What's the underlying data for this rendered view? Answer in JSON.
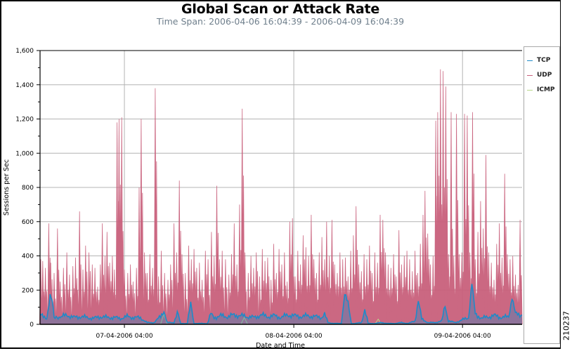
{
  "chart_data": {
    "type": "line",
    "title": "Global Scan or Attack Rate",
    "subtitle": "Time Span: 2006-04-06 16:04:39 - 2006-04-09 16:04:39",
    "xlabel": "Date and Time",
    "ylabel": "Sessions per Sec",
    "ylim": [
      0,
      1600
    ],
    "y_ticks": [
      "0",
      "200",
      "400",
      "600",
      "800",
      "1,000",
      "1,200",
      "1,400",
      "1,600"
    ],
    "y_tick_values": [
      0,
      200,
      400,
      600,
      800,
      1000,
      1200,
      1400,
      1600
    ],
    "x_range_hours": [
      0,
      72
    ],
    "x_ticks": [
      {
        "label": "07-04-2006 04:00",
        "hour": 12.6
      },
      {
        "label": "08-04-2006 04:00",
        "hour": 37.9
      },
      {
        "label": "09-04-2006 04:00",
        "hour": 63.1
      }
    ],
    "grid": true,
    "legend_position": "right",
    "legend": [
      "TCP",
      "UDP",
      "ICMP"
    ],
    "colors": {
      "TCP": "#1f8ac8",
      "UDP": "#c9607c",
      "ICMP": "#b8d88a"
    },
    "series": [
      {
        "name": "UDP",
        "note": "spike peaks (hour, sessions/sec)",
        "peaks": [
          [
            0.1,
            380
          ],
          [
            0.4,
            370
          ],
          [
            0.8,
            330
          ],
          [
            1.3,
            590
          ],
          [
            1.6,
            360
          ],
          [
            2.1,
            300
          ],
          [
            2.6,
            560
          ],
          [
            3.0,
            250
          ],
          [
            3.5,
            330
          ],
          [
            4.0,
            420
          ],
          [
            4.4,
            290
          ],
          [
            4.9,
            340
          ],
          [
            5.3,
            390
          ],
          [
            5.6,
            200
          ],
          [
            5.9,
            660
          ],
          [
            6.4,
            320
          ],
          [
            6.8,
            460
          ],
          [
            7.3,
            420
          ],
          [
            7.8,
            350
          ],
          [
            8.2,
            330
          ],
          [
            8.6,
            220
          ],
          [
            9.0,
            350
          ],
          [
            9.3,
            590
          ],
          [
            9.7,
            400
          ],
          [
            10.0,
            540
          ],
          [
            10.4,
            360
          ],
          [
            10.8,
            400
          ],
          [
            11.1,
            320
          ],
          [
            11.5,
            1180
          ],
          [
            11.8,
            1200
          ],
          [
            12.2,
            1210
          ],
          [
            12.6,
            320
          ],
          [
            13.1,
            300
          ],
          [
            13.5,
            350
          ],
          [
            13.9,
            250
          ],
          [
            14.4,
            330
          ],
          [
            14.8,
            800
          ],
          [
            15.1,
            1200
          ],
          [
            15.6,
            420
          ],
          [
            16.0,
            300
          ],
          [
            16.4,
            410
          ],
          [
            16.8,
            330
          ],
          [
            17.2,
            1380
          ],
          [
            17.7,
            280
          ],
          [
            18.1,
            430
          ],
          [
            18.6,
            300
          ],
          [
            19.1,
            260
          ],
          [
            19.5,
            350
          ],
          [
            20.0,
            590
          ],
          [
            20.4,
            420
          ],
          [
            20.8,
            840
          ],
          [
            21.2,
            410
          ],
          [
            21.7,
            300
          ],
          [
            22.2,
            460
          ],
          [
            22.6,
            380
          ],
          [
            23.0,
            440
          ],
          [
            23.4,
            330
          ],
          [
            23.8,
            360
          ],
          [
            24.2,
            260
          ],
          [
            24.7,
            430
          ],
          [
            25.1,
            380
          ],
          [
            25.6,
            540
          ],
          [
            26.0,
            400
          ],
          [
            26.4,
            810
          ],
          [
            26.8,
            380
          ],
          [
            27.2,
            430
          ],
          [
            27.7,
            380
          ],
          [
            28.2,
            290
          ],
          [
            28.6,
            410
          ],
          [
            29.0,
            590
          ],
          [
            29.4,
            350
          ],
          [
            29.8,
            700
          ],
          [
            30.2,
            1260
          ],
          [
            30.6,
            420
          ],
          [
            31.1,
            300
          ],
          [
            31.5,
            400
          ],
          [
            31.9,
            330
          ],
          [
            32.3,
            420
          ],
          [
            32.8,
            280
          ],
          [
            33.2,
            440
          ],
          [
            33.6,
            370
          ],
          [
            34.0,
            390
          ],
          [
            34.5,
            260
          ],
          [
            34.9,
            470
          ],
          [
            35.3,
            300
          ],
          [
            35.7,
            440
          ],
          [
            36.1,
            350
          ],
          [
            36.5,
            420
          ],
          [
            36.9,
            250
          ],
          [
            37.3,
            600
          ],
          [
            37.7,
            620
          ],
          [
            38.1,
            280
          ],
          [
            38.5,
            430
          ],
          [
            38.9,
            350
          ],
          [
            39.3,
            520
          ],
          [
            39.7,
            450
          ],
          [
            40.1,
            400
          ],
          [
            40.5,
            640
          ],
          [
            40.9,
            380
          ],
          [
            41.3,
            300
          ],
          [
            41.7,
            420
          ],
          [
            42.1,
            510
          ],
          [
            42.5,
            380
          ],
          [
            42.8,
            600
          ],
          [
            43.2,
            400
          ],
          [
            43.6,
            610
          ],
          [
            44.0,
            350
          ],
          [
            44.4,
            300
          ],
          [
            44.8,
            420
          ],
          [
            45.2,
            380
          ],
          [
            45.6,
            390
          ],
          [
            46.0,
            280
          ],
          [
            46.4,
            430
          ],
          [
            46.8,
            520
          ],
          [
            47.2,
            690
          ],
          [
            47.6,
            350
          ],
          [
            48.0,
            310
          ],
          [
            48.4,
            410
          ],
          [
            48.8,
            380
          ],
          [
            49.2,
            460
          ],
          [
            49.6,
            300
          ],
          [
            50.0,
            420
          ],
          [
            50.4,
            360
          ],
          [
            50.8,
            640
          ],
          [
            51.2,
            610
          ],
          [
            51.6,
            420
          ],
          [
            52.0,
            350
          ],
          [
            52.4,
            330
          ],
          [
            52.8,
            410
          ],
          [
            53.2,
            280
          ],
          [
            53.6,
            550
          ],
          [
            54.0,
            350
          ],
          [
            54.4,
            400
          ],
          [
            54.8,
            430
          ],
          [
            55.2,
            380
          ],
          [
            55.6,
            310
          ],
          [
            56.0,
            430
          ],
          [
            56.4,
            300
          ],
          [
            56.8,
            470
          ],
          [
            57.2,
            640
          ],
          [
            57.5,
            780
          ],
          [
            57.9,
            530
          ],
          [
            58.3,
            350
          ],
          [
            58.7,
            400
          ],
          [
            59.1,
            1190
          ],
          [
            59.4,
            1240
          ],
          [
            59.8,
            1490
          ],
          [
            60.2,
            1480
          ],
          [
            60.6,
            1390
          ],
          [
            61.0,
            410
          ],
          [
            61.4,
            1240
          ],
          [
            61.8,
            400
          ],
          [
            62.2,
            1230
          ],
          [
            62.6,
            410
          ],
          [
            63.0,
            420
          ],
          [
            63.4,
            1230
          ],
          [
            63.8,
            1220
          ],
          [
            64.2,
            420
          ],
          [
            64.6,
            1240
          ],
          [
            65.0,
            380
          ],
          [
            65.4,
            540
          ],
          [
            65.8,
            720
          ],
          [
            66.2,
            560
          ],
          [
            66.6,
            990
          ],
          [
            67.0,
            420
          ],
          [
            67.4,
            360
          ],
          [
            67.8,
            260
          ],
          [
            68.2,
            470
          ],
          [
            68.6,
            590
          ],
          [
            69.0,
            390
          ],
          [
            69.4,
            880
          ],
          [
            69.8,
            410
          ],
          [
            70.2,
            380
          ],
          [
            70.6,
            400
          ],
          [
            71.0,
            290
          ],
          [
            71.4,
            230
          ],
          [
            71.7,
            610
          ]
        ]
      },
      {
        "name": "TCP",
        "note": "baseline level plus bumps (hour, sessions/sec)",
        "points": [
          [
            0,
            60
          ],
          [
            0.5,
            40
          ],
          [
            1.0,
            35
          ],
          [
            1.5,
            170
          ],
          [
            1.8,
            150
          ],
          [
            2.1,
            45
          ],
          [
            3,
            40
          ],
          [
            4,
            55
          ],
          [
            5,
            40
          ],
          [
            6,
            45
          ],
          [
            7,
            40
          ],
          [
            8,
            35
          ],
          [
            9,
            45
          ],
          [
            10,
            40
          ],
          [
            11,
            40
          ],
          [
            12,
            35
          ],
          [
            13,
            45
          ],
          [
            14,
            40
          ],
          [
            15,
            38
          ],
          [
            16,
            10
          ],
          [
            17,
            10
          ],
          [
            18,
            45
          ],
          [
            18.5,
            80
          ],
          [
            19,
            10
          ],
          [
            20,
            10
          ],
          [
            20.5,
            70
          ],
          [
            21,
            5
          ],
          [
            22,
            5
          ],
          [
            22.5,
            120
          ],
          [
            23,
            5
          ],
          [
            24,
            5
          ],
          [
            25,
            5
          ],
          [
            25.5,
            60
          ],
          [
            26,
            40
          ],
          [
            27,
            50
          ],
          [
            28,
            45
          ],
          [
            29,
            55
          ],
          [
            30,
            50
          ],
          [
            31,
            45
          ],
          [
            32,
            40
          ],
          [
            33,
            55
          ],
          [
            34,
            45
          ],
          [
            35,
            50
          ],
          [
            36,
            40
          ],
          [
            37,
            55
          ],
          [
            38,
            50
          ],
          [
            39,
            45
          ],
          [
            40,
            50
          ],
          [
            41,
            45
          ],
          [
            42,
            40
          ],
          [
            42.5,
            60
          ],
          [
            43,
            10
          ],
          [
            44,
            5
          ],
          [
            45,
            5
          ],
          [
            45.5,
            180
          ],
          [
            46,
            120
          ],
          [
            46.5,
            5
          ],
          [
            47,
            5
          ],
          [
            48,
            10
          ],
          [
            48.5,
            90
          ],
          [
            49,
            5
          ],
          [
            50,
            5
          ],
          [
            51,
            10
          ],
          [
            52,
            5
          ],
          [
            53,
            5
          ],
          [
            54,
            10
          ],
          [
            55,
            5
          ],
          [
            56,
            20
          ],
          [
            56.5,
            140
          ],
          [
            57,
            30
          ],
          [
            58,
            10
          ],
          [
            59,
            10
          ],
          [
            60,
            20
          ],
          [
            60.5,
            110
          ],
          [
            61,
            20
          ],
          [
            62,
            10
          ],
          [
            63,
            25
          ],
          [
            64,
            40
          ],
          [
            64.5,
            240
          ],
          [
            65,
            60
          ],
          [
            66,
            35
          ],
          [
            67,
            45
          ],
          [
            68,
            50
          ],
          [
            69,
            40
          ],
          [
            70,
            45
          ],
          [
            70.5,
            160
          ],
          [
            71,
            60
          ],
          [
            72,
            55
          ]
        ]
      },
      {
        "name": "ICMP",
        "note": "near zero with occasional small bumps",
        "points": [
          [
            0,
            0
          ],
          [
            18,
            0
          ],
          [
            18.5,
            60
          ],
          [
            19,
            0
          ],
          [
            30,
            0
          ],
          [
            30.5,
            40
          ],
          [
            31,
            0
          ],
          [
            50,
            0
          ],
          [
            50.5,
            30
          ],
          [
            51,
            0
          ],
          [
            72,
            0
          ]
        ]
      }
    ]
  },
  "legend": {
    "items": [
      {
        "label": "TCP",
        "color": "#1f8ac8"
      },
      {
        "label": "UDP",
        "color": "#c9607c"
      },
      {
        "label": "ICMP",
        "color": "#b8d88a"
      }
    ]
  },
  "figure_id": "210237"
}
